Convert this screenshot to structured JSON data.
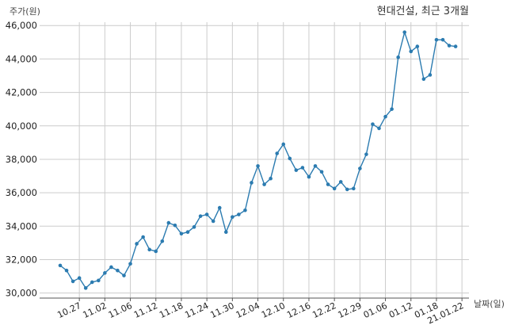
{
  "chart_data": {
    "type": "line",
    "title": "현대건설, 최근 3개월",
    "ylabel": "주가(원)",
    "xlabel": "날짜(일)",
    "ylim": [
      29700,
      46200
    ],
    "yticks": [
      30000,
      32000,
      34000,
      36000,
      38000,
      40000,
      42000,
      44000,
      46000
    ],
    "ytick_labels": [
      "30,000",
      "32,000",
      "34,000",
      "36,000",
      "38,000",
      "40,000",
      "42,000",
      "44,000",
      "46,000"
    ],
    "xtick_labels": [
      "10.27",
      "11.02",
      "11.06",
      "11.12",
      "11.18",
      "11.24",
      "11.30",
      "12.04",
      "12.10",
      "12.16",
      "12.22",
      "12.29",
      "01.06",
      "01.12",
      "01.18",
      "21.01.22"
    ],
    "xtick_index": [
      3,
      7,
      11,
      15,
      19,
      23,
      27,
      31,
      35,
      39,
      43,
      47,
      51,
      55,
      59,
      63
    ],
    "grid": true,
    "legend": "none",
    "line_color": "#2b7bb0",
    "series": [
      {
        "values": [
          31650,
          31350,
          30700,
          30900,
          30300,
          30650,
          30750,
          31200,
          31550,
          31350,
          31050,
          31750,
          32950,
          33350,
          32600,
          32500,
          33100,
          34200,
          34050,
          33550,
          33650,
          33950,
          34600,
          34700,
          34300,
          35100,
          33650,
          34550,
          34700,
          34950,
          36600,
          37600,
          36500,
          36850,
          38350,
          38900,
          38050,
          37350,
          37500,
          36950,
          37600,
          37250,
          36500,
          36250,
          36650,
          36200,
          36250,
          37450,
          38300,
          40100,
          39850,
          40550,
          41000,
          44100,
          45600,
          44450,
          44750,
          42800,
          43050,
          45150,
          45150,
          44800,
          44750
        ]
      }
    ]
  }
}
